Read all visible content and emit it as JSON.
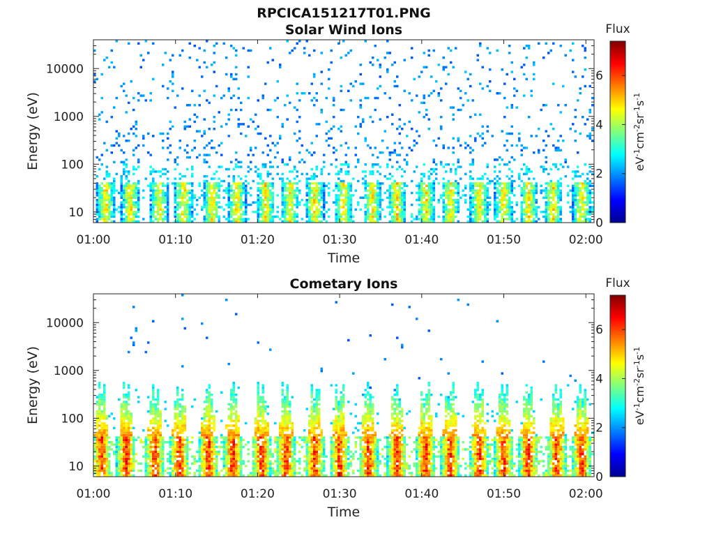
{
  "figure_title": "RPCICA151217T01.PNG",
  "chart_data": [
    {
      "type": "heatmap",
      "title": "Solar Wind Ions",
      "xlabel": "Time",
      "ylabel": "Energy (eV)",
      "x_ticks": [
        "01:00",
        "01:10",
        "01:20",
        "01:30",
        "01:40",
        "01:50",
        "02:00"
      ],
      "x_range_minutes": [
        0,
        61
      ],
      "y_ticks": [
        "10",
        "100",
        "1000",
        "10000"
      ],
      "y_scale": "log",
      "y_range": [
        6,
        40000
      ],
      "colorbar": {
        "label": "Flux",
        "unit": "eV-1cm-2sr-1s-1",
        "ticks": [
          "0",
          "2",
          "4",
          "6"
        ],
        "range": [
          0,
          7.4
        ],
        "colormap": "jet"
      },
      "bursts_minutes": [
        1.5,
        4.5,
        8,
        11,
        14.5,
        17.5,
        21,
        24,
        27,
        30.5,
        34,
        37,
        40.5,
        43.5,
        47,
        50,
        53,
        56,
        59.5
      ],
      "low_energy_band_eV": [
        6,
        40
      ],
      "low_energy_peak_flux": 5.5,
      "background_speckle_eV": [
        100,
        40000
      ],
      "background_flux": 2
    },
    {
      "type": "heatmap",
      "title": "Cometary Ions",
      "xlabel": "Time",
      "ylabel": "Energy (eV)",
      "x_ticks": [
        "01:00",
        "01:10",
        "01:20",
        "01:30",
        "01:40",
        "01:50",
        "02:00"
      ],
      "x_range_minutes": [
        0,
        61
      ],
      "y_ticks": [
        "10",
        "100",
        "1000",
        "10000"
      ],
      "y_scale": "log",
      "y_range": [
        6,
        40000
      ],
      "colorbar": {
        "label": "Flux",
        "unit": "eV-1cm-2sr-1s-1",
        "ticks": [
          "0",
          "2",
          "4",
          "6"
        ],
        "range": [
          0,
          7.4
        ],
        "colormap": "jet"
      },
      "bursts_minutes": [
        1,
        4,
        7.5,
        10.5,
        14,
        17,
        20.5,
        23.5,
        27,
        30,
        33.5,
        37,
        40.5,
        43.5,
        47,
        50,
        53,
        56.5,
        59.5
      ],
      "low_energy_band_eV": [
        6,
        40
      ],
      "low_energy_peak_flux": 7.0,
      "plume_top_eV": [
        250,
        600
      ],
      "background_flux": 1.5
    }
  ]
}
